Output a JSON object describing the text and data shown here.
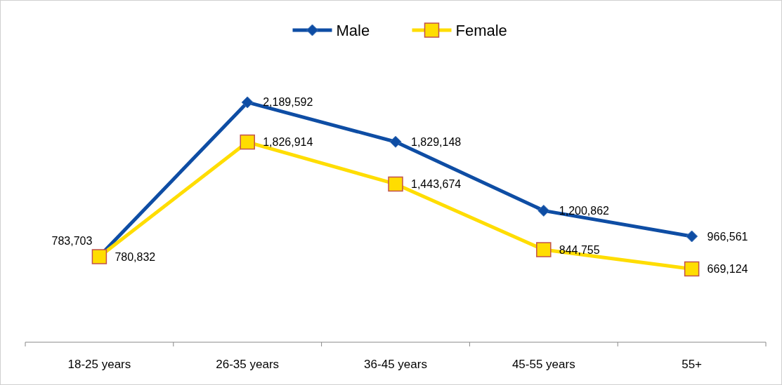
{
  "chart_data": {
    "type": "line",
    "categories": [
      "18-25 years",
      "26-35 years",
      "36-45 years",
      "45-55 years",
      "55+"
    ],
    "series": [
      {
        "name": "Male",
        "color": "#0e4da4",
        "marker": "diamond",
        "values": [
          783703,
          2189592,
          1829148,
          1200862,
          966561
        ],
        "value_labels": [
          "783,703",
          "2,189,592",
          "1,829,148",
          "1,200,862",
          "966,561"
        ]
      },
      {
        "name": "Female",
        "color": "#ffdd00",
        "marker": "square",
        "values": [
          780832,
          1826914,
          1443674,
          844755,
          669124
        ],
        "value_labels": [
          "780,832",
          "1,826,914",
          "1,443,674",
          "844,755",
          "669,124"
        ]
      }
    ],
    "tick_labels": "x",
    "legend": "top"
  }
}
